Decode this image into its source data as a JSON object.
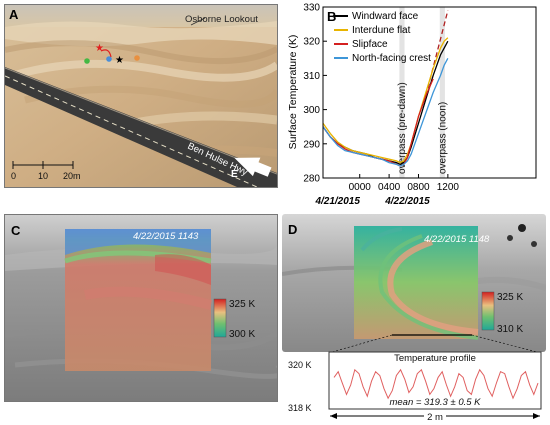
{
  "panel_a": {
    "label": "A",
    "landmark": "Osborne Lookout",
    "road": "Ben Hulse Hwy",
    "direction": "E",
    "scale_labels": [
      "0",
      "10",
      "20m"
    ]
  },
  "chart_data": {
    "type": "line",
    "label": "B",
    "ylabel": "Surface Temperature (K)",
    "ylim": [
      280,
      330
    ],
    "yticks": [
      280,
      290,
      300,
      310,
      320,
      330
    ],
    "xlim": [
      -5,
      24
    ],
    "xticks": [
      {
        "value": 0,
        "label": "0000"
      },
      {
        "value": 4,
        "label": "0400"
      },
      {
        "value": 8,
        "label": "0800"
      },
      {
        "value": 12,
        "label": "1200"
      }
    ],
    "date_labels": [
      {
        "value": -3,
        "label": "4/21/2015"
      },
      {
        "value": 6.5,
        "label": "4/22/2015"
      }
    ],
    "shaded_bands": [
      {
        "from": 5.4,
        "to": 6.1,
        "label": "overpass (pre-dawn)"
      },
      {
        "from": 10.9,
        "to": 11.6,
        "label": "overpass (noon)"
      }
    ],
    "series": [
      {
        "name": "Windward face",
        "color": "#000000",
        "x": [
          -5,
          -4,
          -3,
          -2,
          -1,
          0,
          1,
          2,
          3,
          4,
          5,
          5.5,
          6,
          6.5,
          7,
          8,
          9,
          10,
          11,
          11.5,
          12
        ],
        "y": [
          295,
          292,
          290,
          289,
          288,
          287.5,
          287,
          286,
          285.5,
          285,
          284.5,
          284,
          284.5,
          286,
          289,
          296,
          303,
          310,
          316,
          318,
          320
        ]
      },
      {
        "name": "Interdune flat",
        "color": "#e8b400",
        "x": [
          -5,
          -4,
          -3,
          -2,
          -1,
          0,
          1,
          2,
          3,
          4,
          5,
          5.5,
          6,
          6.5,
          7,
          8,
          9,
          10,
          11,
          11.5,
          12
        ],
        "y": [
          296,
          293,
          290.5,
          289,
          288,
          287.5,
          287,
          286.5,
          286,
          285.5,
          285,
          284.5,
          285,
          287,
          290,
          298,
          305,
          312,
          318,
          320,
          321
        ]
      },
      {
        "name": "Slipface",
        "color": "#d42020",
        "x": [
          -5,
          -4,
          -3,
          -2,
          -1,
          0,
          1,
          2,
          3,
          4,
          5,
          5.5,
          6,
          6.5,
          7,
          8,
          9,
          10
        ],
        "y": [
          295,
          292,
          290,
          288.5,
          287.5,
          287,
          286.5,
          286,
          285.5,
          285,
          284,
          283.5,
          284,
          286,
          290,
          298,
          304,
          309
        ]
      },
      {
        "name": "North-facing crest",
        "color": "#3e96d8",
        "x": [
          -5,
          -4,
          -3,
          -2,
          -1,
          0,
          1,
          2,
          3,
          4,
          5,
          5.5,
          6,
          6.5,
          7,
          8,
          9,
          10,
          11,
          11.5,
          12
        ],
        "y": [
          295,
          292,
          289.5,
          288,
          287.5,
          287,
          286.5,
          286,
          285.5,
          284.5,
          284,
          283.5,
          284,
          285,
          287,
          293,
          299,
          305,
          310,
          313,
          315
        ]
      }
    ],
    "dashed_extrapolation": {
      "color": "#b02020",
      "x": [
        9,
        12
      ],
      "y": [
        304,
        329
      ]
    }
  },
  "panel_c": {
    "label": "C",
    "timestamp": "4/22/2015  1143",
    "scale_max": "325 K",
    "scale_min": "300 K"
  },
  "panel_d": {
    "label": "D",
    "timestamp": "4/22/2015  1148",
    "scale_max": "325 K",
    "scale_min": "310 K",
    "profile_title": "Temperature profile",
    "profile_ymax": "320 K",
    "profile_ymin": "318 K",
    "profile_mean": "mean = 319.3 ± 0.5 K",
    "profile_length": "2 m",
    "profile_values": [
      319.5,
      319.8,
      319.2,
      318.6,
      319.1,
      319.9,
      319.7,
      319.0,
      318.5,
      319.3,
      319.8,
      319.6,
      318.9,
      318.4,
      318.8,
      319.6,
      319.9,
      319.4,
      318.7,
      319.0,
      319.7,
      319.9,
      319.3,
      318.6,
      318.9,
      319.5,
      319.8,
      319.1,
      318.5,
      319.0,
      319.7,
      319.5,
      318.8,
      318.6,
      319.4,
      319.9,
      319.6,
      318.9,
      318.5,
      319.2,
      319.8,
      319.7,
      319.0,
      318.4,
      318.9,
      319.6,
      319.8,
      319.1,
      318.6,
      319.2
    ]
  }
}
